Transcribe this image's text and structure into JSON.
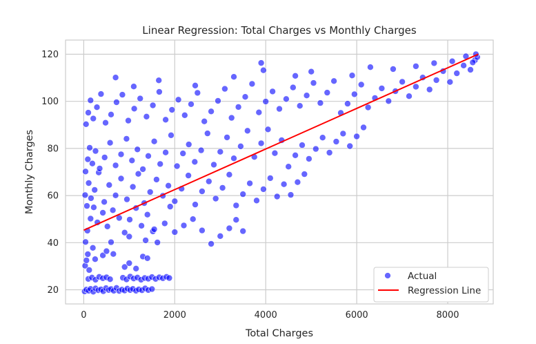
{
  "chart_data": {
    "type": "scatter",
    "title": "Linear Regression: Total Charges vs Monthly Charges",
    "xlabel": "Total Charges",
    "ylabel": "Monthly Charges",
    "xlim": [
      -400,
      9000
    ],
    "ylim": [
      14,
      126
    ],
    "xticks": [
      0,
      2000,
      4000,
      6000,
      8000
    ],
    "yticks": [
      20,
      40,
      60,
      80,
      100,
      120
    ],
    "xtick_labels": [
      "0",
      "2000",
      "4000",
      "6000",
      "8000"
    ],
    "ytick_labels": [
      "20",
      "40",
      "60",
      "80",
      "100",
      "120"
    ],
    "grid": true,
    "legend_position": "bottom-right",
    "colors": {
      "points": "#0000ff",
      "regression": "#ff0000",
      "grid": "#cccccc",
      "frame": "#cccccc"
    },
    "series": [
      {
        "name": "Actual",
        "kind": "scatter",
        "points": [
          [
            20,
            19.3
          ],
          [
            60,
            20.1
          ],
          [
            110,
            19.6
          ],
          [
            150,
            20.4
          ],
          [
            210,
            19.2
          ],
          [
            260,
            20.6
          ],
          [
            320,
            19.8
          ],
          [
            380,
            20.2
          ],
          [
            430,
            19.4
          ],
          [
            490,
            20.7
          ],
          [
            550,
            19.9
          ],
          [
            600,
            20.3
          ],
          [
            660,
            19.6
          ],
          [
            720,
            20.8
          ],
          [
            780,
            19.5
          ],
          [
            840,
            20.1
          ],
          [
            900,
            19.7
          ],
          [
            960,
            20.5
          ],
          [
            1020,
            19.9
          ],
          [
            1080,
            20.4
          ],
          [
            1150,
            19.6
          ],
          [
            1210,
            20.2
          ],
          [
            1280,
            19.8
          ],
          [
            1350,
            20.6
          ],
          [
            1420,
            19.9
          ],
          [
            1500,
            20.3
          ],
          [
            100,
            24.6
          ],
          [
            180,
            25.2
          ],
          [
            260,
            24.3
          ],
          [
            340,
            25.5
          ],
          [
            420,
            24.9
          ],
          [
            500,
            25.3
          ],
          [
            580,
            24.5
          ],
          [
            860,
            25.1
          ],
          [
            940,
            24.4
          ],
          [
            1020,
            25.6
          ],
          [
            1100,
            24.8
          ],
          [
            1180,
            25.2
          ],
          [
            1260,
            24.3
          ],
          [
            1340,
            25.0
          ],
          [
            1420,
            24.7
          ],
          [
            1500,
            25.4
          ],
          [
            1580,
            24.6
          ],
          [
            1660,
            25.3
          ],
          [
            1740,
            24.9
          ],
          [
            1820,
            25.5
          ],
          [
            1880,
            25.0
          ],
          [
            30,
            30.2
          ],
          [
            60,
            32.5
          ],
          [
            90,
            35.1
          ],
          [
            120,
            28.4
          ],
          [
            250,
            33.0
          ],
          [
            420,
            34.6
          ],
          [
            650,
            35.2
          ],
          [
            900,
            29.7
          ],
          [
            1000,
            31.3
          ],
          [
            1300,
            34.1
          ],
          [
            1400,
            33.4
          ],
          [
            200,
            37.8
          ],
          [
            500,
            36.4
          ],
          [
            1150,
            29.0
          ],
          [
            40,
            40.3
          ],
          [
            80,
            45.1
          ],
          [
            150,
            50.2
          ],
          [
            220,
            55.0
          ],
          [
            300,
            48.6
          ],
          [
            420,
            52.7
          ],
          [
            520,
            46.9
          ],
          [
            640,
            53.8
          ],
          [
            780,
            50.5
          ],
          [
            900,
            44.3
          ],
          [
            1010,
            49.8
          ],
          [
            1150,
            54.7
          ],
          [
            1270,
            47.2
          ],
          [
            1400,
            51.9
          ],
          [
            1520,
            44.8
          ],
          [
            1620,
            40.1
          ],
          [
            1780,
            48.2
          ],
          [
            1900,
            55.3
          ],
          [
            600,
            40.2
          ],
          [
            1000,
            42.6
          ],
          [
            1360,
            41.0
          ],
          [
            1550,
            45.7
          ],
          [
            2000,
            44.5
          ],
          [
            2200,
            47.3
          ],
          [
            2400,
            50.0
          ],
          [
            2600,
            45.2
          ],
          [
            2800,
            39.5
          ],
          [
            3000,
            42.8
          ],
          [
            3200,
            46.1
          ],
          [
            3350,
            49.7
          ],
          [
            3500,
            44.9
          ],
          [
            30,
            60.2
          ],
          [
            70,
            55.6
          ],
          [
            110,
            65.3
          ],
          [
            160,
            58.9
          ],
          [
            240,
            62.4
          ],
          [
            330,
            69.8
          ],
          [
            450,
            57.3
          ],
          [
            560,
            64.5
          ],
          [
            700,
            60.1
          ],
          [
            820,
            67.2
          ],
          [
            950,
            58.4
          ],
          [
            1080,
            63.7
          ],
          [
            1200,
            69.2
          ],
          [
            1330,
            56.8
          ],
          [
            1460,
            61.5
          ],
          [
            1600,
            66.8
          ],
          [
            1740,
            59.9
          ],
          [
            1860,
            64.2
          ],
          [
            2000,
            57.6
          ],
          [
            2150,
            62.9
          ],
          [
            2300,
            68.5
          ],
          [
            2450,
            56.2
          ],
          [
            2600,
            61.8
          ],
          [
            2750,
            66.0
          ],
          [
            2900,
            58.7
          ],
          [
            3050,
            63.3
          ],
          [
            3200,
            68.9
          ],
          [
            3350,
            55.8
          ],
          [
            3500,
            60.6
          ],
          [
            3650,
            65.2
          ],
          [
            3800,
            57.9
          ],
          [
            3950,
            62.7
          ],
          [
            4100,
            67.4
          ],
          [
            4250,
            59.6
          ],
          [
            4400,
            64.8
          ],
          [
            4550,
            60.3
          ],
          [
            4700,
            65.7
          ],
          [
            4850,
            69.1
          ],
          [
            40,
            70.2
          ],
          [
            90,
            75.4
          ],
          [
            130,
            80.3
          ],
          [
            190,
            73.6
          ],
          [
            260,
            78.9
          ],
          [
            350,
            71.5
          ],
          [
            460,
            76.2
          ],
          [
            580,
            82.4
          ],
          [
            700,
            72.8
          ],
          [
            820,
            77.5
          ],
          [
            940,
            84.1
          ],
          [
            1060,
            74.9
          ],
          [
            1180,
            79.6
          ],
          [
            1300,
            71.2
          ],
          [
            1420,
            76.8
          ],
          [
            1550,
            83.0
          ],
          [
            1680,
            73.4
          ],
          [
            1800,
            78.3
          ],
          [
            1920,
            85.6
          ],
          [
            2050,
            72.5
          ],
          [
            2180,
            77.9
          ],
          [
            2310,
            81.7
          ],
          [
            2440,
            74.3
          ],
          [
            2580,
            79.2
          ],
          [
            2720,
            86.4
          ],
          [
            2860,
            73.1
          ],
          [
            3000,
            78.6
          ],
          [
            3150,
            84.7
          ],
          [
            3300,
            75.8
          ],
          [
            3450,
            80.9
          ],
          [
            3600,
            87.5
          ],
          [
            3750,
            76.4
          ],
          [
            3900,
            82.2
          ],
          [
            4050,
            88.1
          ],
          [
            4200,
            78.0
          ],
          [
            4350,
            83.5
          ],
          [
            4500,
            72.3
          ],
          [
            4650,
            77.1
          ],
          [
            4800,
            81.4
          ],
          [
            4950,
            75.6
          ],
          [
            5100,
            79.8
          ],
          [
            5250,
            84.6
          ],
          [
            5400,
            78.2
          ],
          [
            5550,
            82.9
          ],
          [
            5700,
            86.3
          ],
          [
            5850,
            81.0
          ],
          [
            6000,
            85.1
          ],
          [
            6150,
            88.9
          ],
          [
            50,
            90.3
          ],
          [
            100,
            95.2
          ],
          [
            150,
            100.4
          ],
          [
            210,
            92.7
          ],
          [
            290,
            97.5
          ],
          [
            380,
            103.1
          ],
          [
            480,
            90.9
          ],
          [
            600,
            94.4
          ],
          [
            720,
            99.6
          ],
          [
            850,
            102.8
          ],
          [
            980,
            91.8
          ],
          [
            1110,
            96.9
          ],
          [
            1240,
            101.2
          ],
          [
            1380,
            93.5
          ],
          [
            1520,
            98.3
          ],
          [
            1660,
            104.0
          ],
          [
            1800,
            92.2
          ],
          [
            1940,
            96.4
          ],
          [
            2080,
            100.7
          ],
          [
            2220,
            94.1
          ],
          [
            2360,
            98.8
          ],
          [
            2500,
            103.6
          ],
          [
            2650,
            91.5
          ],
          [
            2800,
            95.7
          ],
          [
            2950,
            100.2
          ],
          [
            3100,
            105.3
          ],
          [
            3250,
            93.0
          ],
          [
            3400,
            97.6
          ],
          [
            3550,
            101.9
          ],
          [
            3700,
            107.4
          ],
          [
            3850,
            95.3
          ],
          [
            4000,
            99.9
          ],
          [
            4150,
            104.2
          ],
          [
            4300,
            96.8
          ],
          [
            4450,
            101.0
          ],
          [
            4600,
            105.9
          ],
          [
            4750,
            98.1
          ],
          [
            4900,
            102.5
          ],
          [
            5050,
            107.8
          ],
          [
            5200,
            99.3
          ],
          [
            5350,
            103.7
          ],
          [
            5500,
            108.6
          ],
          [
            5650,
            95.1
          ],
          [
            5800,
            99.0
          ],
          [
            5950,
            103.0
          ],
          [
            6100,
            107.1
          ],
          [
            6250,
            97.4
          ],
          [
            6400,
            101.4
          ],
          [
            6550,
            105.5
          ],
          [
            6700,
            100.1
          ],
          [
            6850,
            104.3
          ],
          [
            7000,
            108.3
          ],
          [
            7150,
            102.2
          ],
          [
            7300,
            106.2
          ],
          [
            7450,
            110.1
          ],
          [
            7600,
            105.0
          ],
          [
            7750,
            109.0
          ],
          [
            7900,
            112.8
          ],
          [
            8050,
            108.2
          ],
          [
            8200,
            111.9
          ],
          [
            8350,
            115.2
          ],
          [
            8500,
            113.4
          ],
          [
            8600,
            117.5
          ],
          [
            8650,
            118.8
          ],
          [
            700,
            110.1
          ],
          [
            1100,
            106.3
          ],
          [
            1650,
            108.9
          ],
          [
            2450,
            106.7
          ],
          [
            3300,
            110.4
          ],
          [
            3900,
            116.3
          ],
          [
            3950,
            113.2
          ],
          [
            4650,
            110.8
          ],
          [
            5000,
            112.6
          ],
          [
            5900,
            111.0
          ],
          [
            6300,
            114.5
          ],
          [
            6800,
            113.7
          ],
          [
            7300,
            114.9
          ],
          [
            7700,
            116.2
          ],
          [
            8100,
            117.0
          ],
          [
            8400,
            119.1
          ],
          [
            8550,
            116.5
          ],
          [
            8620,
            120.0
          ]
        ]
      },
      {
        "name": "Regression Line",
        "kind": "line",
        "points": [
          [
            0,
            45.3
          ],
          [
            8670,
            120.0
          ]
        ]
      }
    ]
  }
}
